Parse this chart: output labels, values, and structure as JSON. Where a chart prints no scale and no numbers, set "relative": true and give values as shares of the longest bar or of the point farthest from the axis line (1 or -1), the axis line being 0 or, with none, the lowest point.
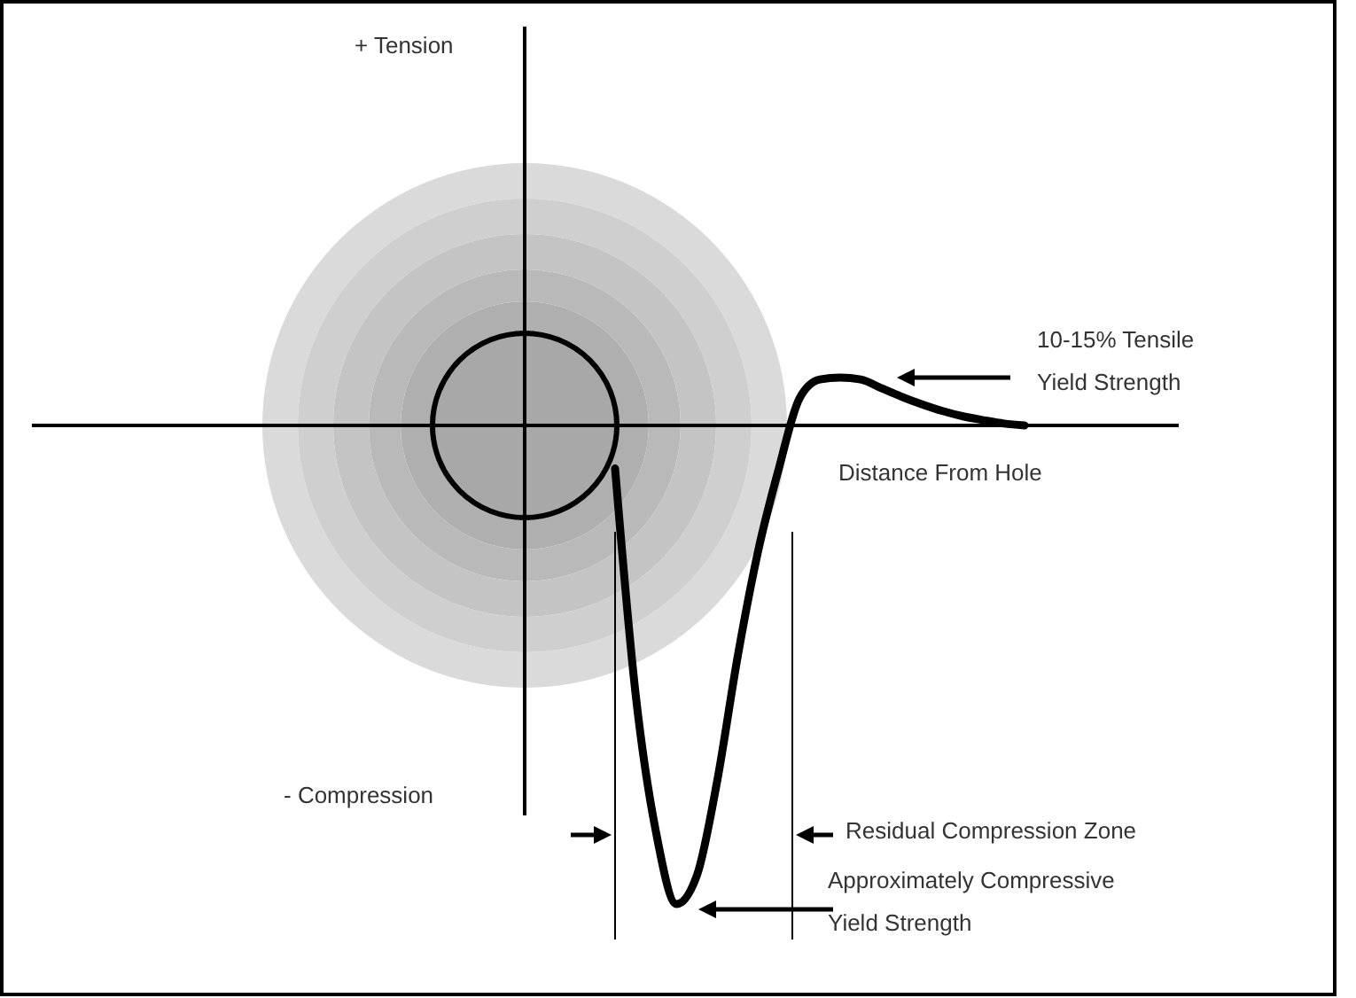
{
  "chart_data": {
    "type": "line",
    "relative": true,
    "xlabel": "Distance From Hole",
    "categories": [
      null,
      null,
      null,
      null,
      null,
      null,
      null,
      null,
      null,
      null,
      null,
      null,
      null,
      null,
      null,
      null,
      null,
      null,
      null,
      null,
      null
    ],
    "series": [
      {
        "color": "#000000",
        "values": [
          -0.09,
          -0.56,
          -0.85,
          -1,
          -0.94,
          -0.74,
          -0.48,
          -0.26,
          -0.09,
          0.056,
          0.096,
          0.1,
          0.096,
          0.078,
          0.06,
          0.044,
          0.03,
          0.019,
          0.011,
          0.004,
          0
        ]
      }
    ],
    "annotations": [
      "+ Tension",
      "- Compression",
      "10-15% Tensile Yield Strength",
      "Residual Compression Zone",
      "Approximately Compressive Yield Strength"
    ]
  }
}
